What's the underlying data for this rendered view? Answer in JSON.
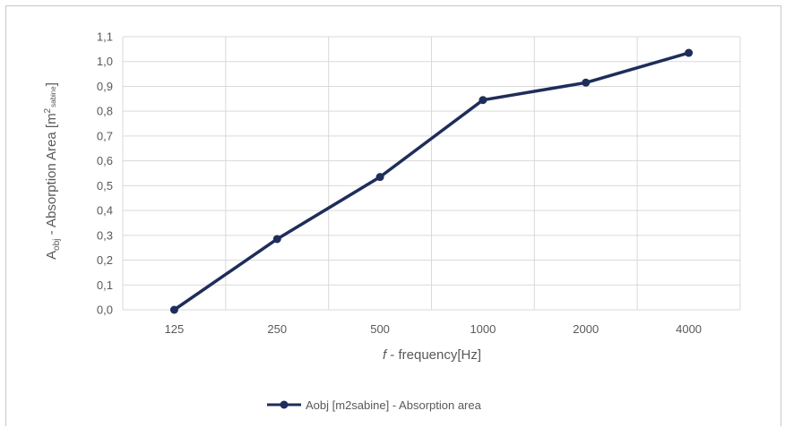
{
  "chart_data": {
    "type": "line",
    "categories": [
      "125",
      "250",
      "500",
      "1000",
      "2000",
      "4000"
    ],
    "series": [
      {
        "name": "Aobj [m2sabine] - Absorption area",
        "values": [
          0.0,
          0.285,
          0.535,
          0.845,
          0.915,
          1.035
        ],
        "color": "#1f2d5a"
      }
    ],
    "ylim": [
      0.0,
      1.1
    ],
    "ytick_step": 0.1,
    "ytick_labels": [
      "0,0",
      "0,1",
      "0,2",
      "0,3",
      "0,4",
      "0,5",
      "0,6",
      "0,7",
      "0,8",
      "0,9",
      "1,0",
      "1,1"
    ],
    "ylabel": {
      "main": "A",
      "sub": "obj",
      "mid": " - Absorption Area [m",
      "sup": "2",
      "sup_sub": "sabine",
      "end": "]"
    },
    "xlabel": {
      "italic": "f",
      "rest": " - frequency[Hz]"
    },
    "grid": true,
    "legend": "bottom",
    "grid_color": "#d9d9d9",
    "text_color": "#595959"
  }
}
